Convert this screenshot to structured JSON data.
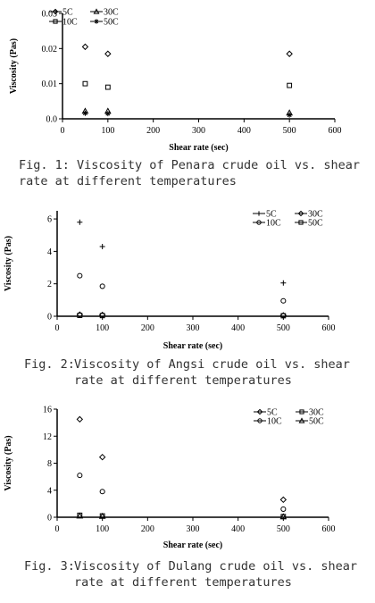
{
  "chart_data": [
    {
      "type": "scatter",
      "xlabel": "Shear rate (sec)",
      "ylabel": "Viscosity (Pas)",
      "xlim": [
        0,
        600
      ],
      "ylim": [
        0,
        0.03
      ],
      "xticks": [
        "0",
        "100",
        "200",
        "300",
        "400",
        "500",
        "600"
      ],
      "yticks": [
        "0.0",
        "0.01",
        "0.02",
        "0.03"
      ],
      "legend_position": "top-left",
      "series": [
        {
          "name": "5C",
          "marker": "diamond",
          "x": [
            50,
            100,
            500
          ],
          "y": [
            0.0205,
            0.0185,
            0.0185
          ]
        },
        {
          "name": "10C",
          "marker": "square",
          "x": [
            50,
            100,
            500
          ],
          "y": [
            0.01,
            0.009,
            0.0095
          ]
        },
        {
          "name": "30C",
          "marker": "triangle",
          "x": [
            50,
            100,
            500
          ],
          "y": [
            0.0022,
            0.0022,
            0.0017
          ]
        },
        {
          "name": "50C",
          "marker": "star",
          "x": [
            50,
            100,
            500
          ],
          "y": [
            0.0016,
            0.0015,
            0.0011
          ]
        }
      ]
    },
    {
      "type": "scatter",
      "xlabel": "Shear rate (sec)",
      "ylabel": "Viscosity (Pas)",
      "xlim": [
        0,
        600
      ],
      "ylim": [
        0,
        6.5
      ],
      "xticks": [
        "0",
        "100",
        "200",
        "300",
        "400",
        "500",
        "600"
      ],
      "yticks": [
        "0",
        "2",
        "4",
        "6"
      ],
      "legend_position": "top-right",
      "series": [
        {
          "name": "5C",
          "marker": "plus",
          "x": [
            50,
            100,
            500
          ],
          "y": [
            5.8,
            4.3,
            2.05
          ]
        },
        {
          "name": "10C",
          "marker": "circle",
          "x": [
            50,
            100,
            500
          ],
          "y": [
            2.5,
            1.85,
            0.95
          ]
        },
        {
          "name": "30C",
          "marker": "diamond",
          "x": [
            50,
            100,
            500
          ],
          "y": [
            0.1,
            0.08,
            0.05
          ]
        },
        {
          "name": "50C",
          "marker": "square",
          "x": [
            50,
            100,
            500
          ],
          "y": [
            0.05,
            0.04,
            0.03
          ]
        }
      ]
    },
    {
      "type": "scatter",
      "xlabel": "Shear rate (sec)",
      "ylabel": "Viscosity (Pas)",
      "xlim": [
        0,
        600
      ],
      "ylim": [
        0,
        16
      ],
      "xticks": [
        "0",
        "100",
        "200",
        "300",
        "400",
        "500",
        "600"
      ],
      "yticks": [
        "0",
        "4",
        "8",
        "12",
        "16"
      ],
      "legend_position": "top-right",
      "series": [
        {
          "name": "5C",
          "marker": "diamond",
          "x": [
            50,
            100,
            500
          ],
          "y": [
            14.5,
            8.9,
            2.6
          ]
        },
        {
          "name": "10C",
          "marker": "circle",
          "x": [
            50,
            100,
            500
          ],
          "y": [
            6.2,
            3.8,
            1.2
          ]
        },
        {
          "name": "30C",
          "marker": "square",
          "x": [
            50,
            100,
            500
          ],
          "y": [
            0.3,
            0.2,
            0.1
          ]
        },
        {
          "name": "50C",
          "marker": "triangle",
          "x": [
            50,
            100,
            500
          ],
          "y": [
            0.2,
            0.15,
            0.08
          ]
        }
      ]
    }
  ],
  "captions": [
    {
      "number": "Fig. 1:",
      "text": "Viscosity of Penara crude oil vs. shear rate at different temperatures"
    },
    {
      "number": "Fig. 2:",
      "text": "Viscosity of Angsi crude oil vs. shear rate at different temperatures"
    },
    {
      "number": "Fig. 3:",
      "text": "Viscosity of Dulang crude oil vs. shear rate at different temperatures"
    }
  ]
}
